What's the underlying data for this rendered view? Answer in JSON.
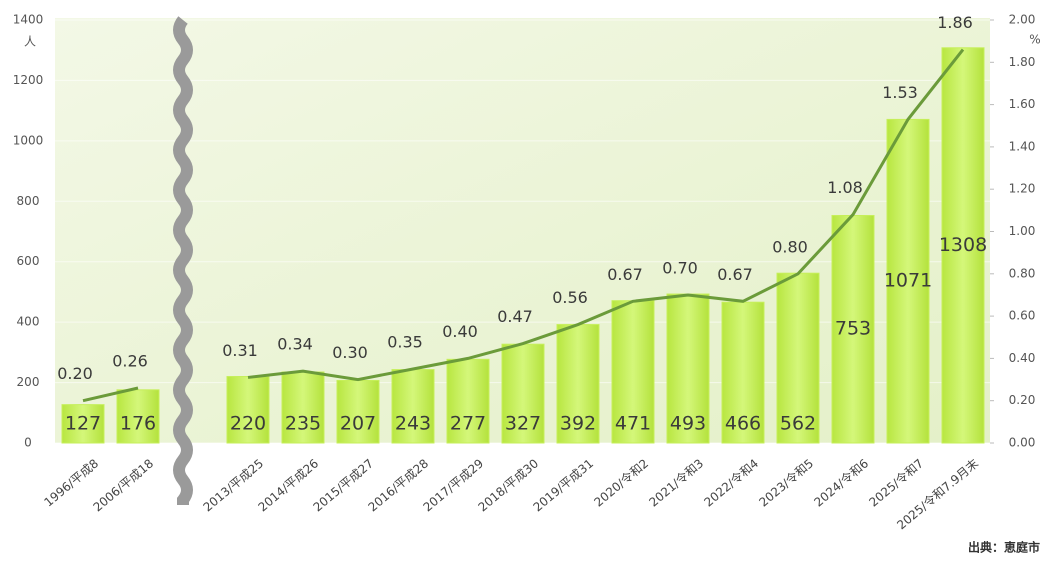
{
  "chart_data": {
    "type": "bar_line",
    "categories": [
      "1996/平成8",
      "2006/平成18",
      "2013/平成25",
      "2014/平成26",
      "2015/平成27",
      "2016/平成28",
      "2017/平成29",
      "2018/平成30",
      "2019/平成31",
      "2020/令和2",
      "2021/令和3",
      "2022/令和4",
      "2023/令和5",
      "2024/令和6",
      "2025/令和7",
      "2025/令和7.9月末"
    ],
    "series": [
      {
        "type": "bar",
        "color": "#c6ef5a",
        "values": [
          127,
          176,
          220,
          235,
          207,
          243,
          277,
          327,
          392,
          471,
          493,
          466,
          562,
          753,
          1071,
          1308
        ]
      },
      {
        "type": "line",
        "axis": "y2",
        "color": "#6b9b3a",
        "values": [
          0.2,
          0.26,
          0.31,
          0.34,
          0.3,
          0.35,
          0.4,
          0.47,
          0.56,
          0.67,
          0.7,
          0.67,
          0.8,
          1.08,
          1.53,
          1.86
        ],
        "value_labels": [
          "0.20",
          "0.26",
          "0.31",
          "0.34",
          "0.30",
          "0.35",
          "0.40",
          "0.47",
          "0.56",
          "0.67",
          "0.70",
          "0.67",
          "0.80",
          "1.08",
          "1.53",
          "1.86"
        ]
      }
    ],
    "ylabel": "人",
    "y2label": "%",
    "ylim": [
      0,
      1400
    ],
    "yticks": [
      0,
      200,
      400,
      600,
      800,
      1000,
      1200,
      1400
    ],
    "y2lim": [
      0,
      2
    ],
    "y2ticks": [
      {
        "value": 0,
        "label": "0.00"
      },
      {
        "value": 0.2,
        "label": "0.20"
      },
      {
        "value": 0.4,
        "label": "0.40"
      },
      {
        "value": 0.6,
        "label": "0.60"
      },
      {
        "value": 0.8,
        "label": "0.80"
      },
      {
        "value": 1,
        "label": "1.00"
      },
      {
        "value": 1.2,
        "label": "1.20"
      },
      {
        "value": 1.4,
        "label": "1.40"
      },
      {
        "value": 1.6,
        "label": "1.60"
      },
      {
        "value": 1.8,
        "label": "1.80"
      },
      {
        "value": 2,
        "label": "2.00"
      }
    ],
    "grid": true,
    "source": "出典：恵庭市"
  }
}
